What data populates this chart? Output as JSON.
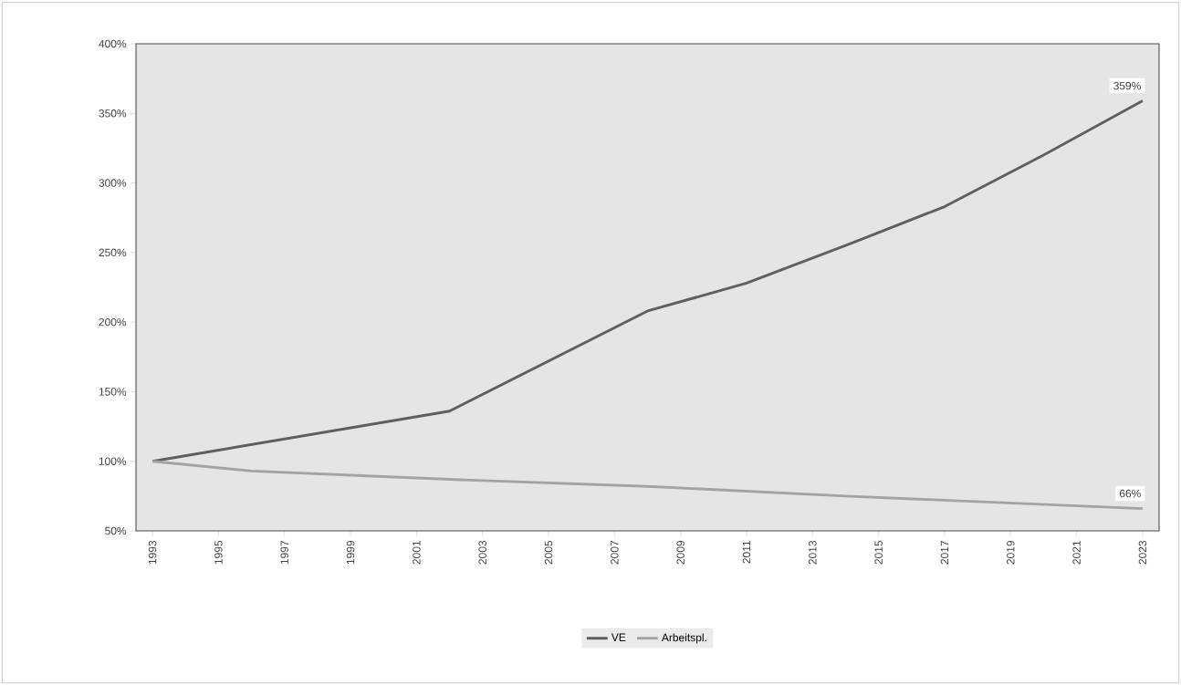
{
  "chart_data": {
    "type": "line",
    "xlim": [
      1992.5,
      2023.5
    ],
    "xticks": [
      1993,
      1995,
      1997,
      1999,
      2001,
      2003,
      2005,
      2007,
      2009,
      2011,
      2013,
      2015,
      2017,
      2019,
      2021,
      2023
    ],
    "ylim": [
      50,
      400
    ],
    "yticks": [
      {
        "value": 50,
        "label": "50%"
      },
      {
        "value": 100,
        "label": "100%"
      },
      {
        "value": 150,
        "label": "150%"
      },
      {
        "value": 200,
        "label": "200%"
      },
      {
        "value": 250,
        "label": "250%"
      },
      {
        "value": 300,
        "label": "300%"
      },
      {
        "value": 350,
        "label": "350%"
      },
      {
        "value": 400,
        "label": "400%"
      }
    ],
    "series": [
      {
        "name": "VE",
        "color": "#5f5f5f",
        "x": [
          1993,
          1999,
          2002,
          2008,
          2011,
          2014,
          2017,
          2020,
          2023
        ],
        "values": [
          100,
          124,
          136,
          208,
          228,
          255,
          283,
          320,
          359
        ]
      },
      {
        "name": "Arbeitspl.",
        "color": "#a3a3a3",
        "x": [
          1993,
          1996,
          2000,
          2002,
          2008,
          2014,
          2023
        ],
        "values": [
          100,
          93,
          89,
          87,
          82,
          75,
          66
        ]
      }
    ],
    "annotations": [
      {
        "text": "359%",
        "x": 2023,
        "y": 359
      },
      {
        "text": "66%",
        "x": 2023,
        "y": 66
      }
    ],
    "legend": "bottom",
    "grid": false,
    "marker": "none",
    "line_style": "solid"
  }
}
